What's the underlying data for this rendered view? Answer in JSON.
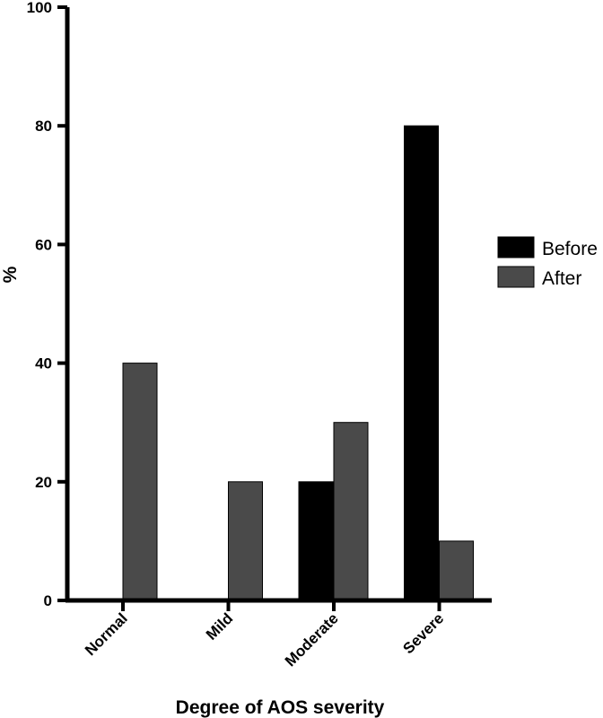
{
  "chart_data": {
    "type": "bar",
    "title": "",
    "xlabel": "Degree of AOS severity",
    "ylabel": "%",
    "categories": [
      "Normal",
      "Mild",
      "Moderate",
      "Severe"
    ],
    "series": [
      {
        "name": "Before",
        "values": [
          0,
          0,
          20,
          80
        ],
        "color": "#000000"
      },
      {
        "name": "After",
        "values": [
          40,
          20,
          30,
          10
        ],
        "color": "#4a4a4a"
      }
    ],
    "ylim": [
      0,
      100
    ],
    "yticks": [
      0,
      20,
      40,
      60,
      80,
      100
    ],
    "grid": false,
    "legend": "right"
  }
}
